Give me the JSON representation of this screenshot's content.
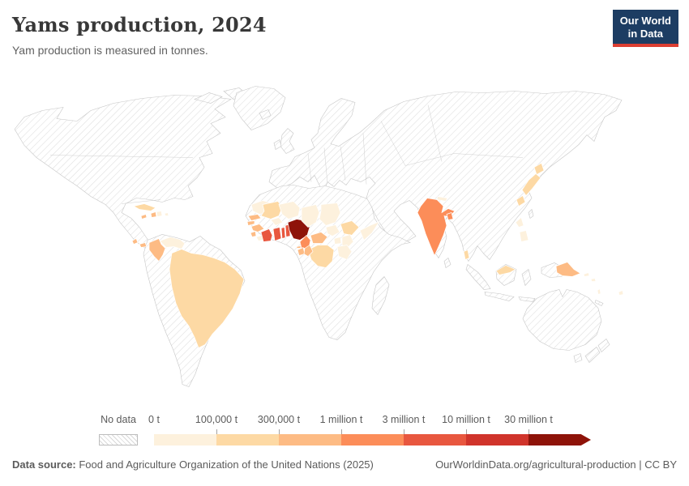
{
  "header": {
    "title": "Yams production, 2024",
    "subtitle": "Yam production is measured in tonnes."
  },
  "logo": {
    "line1": "Our World",
    "line2": "in Data"
  },
  "legend": {
    "no_data_label": "No data"
  },
  "footer": {
    "source_label": "Data source:",
    "source_text": " Food and Agriculture Organization of the United Nations (2025)",
    "right_text": "OurWorldinData.org/agricultural-production | CC BY"
  },
  "chart_data": {
    "type": "choropleth_map",
    "title": "Yams production, 2024",
    "unit": "tonnes",
    "year": "2024",
    "legend_position": "bottom",
    "no_data": {
      "label": "No data",
      "style": "diagonal-hatch"
    },
    "bins": [
      {
        "label": "0 t",
        "range": "0 - 100,000 t",
        "color": "#fdf1dd"
      },
      {
        "label": "100,000 t",
        "range": "100,000 - 300,000 t",
        "color": "#fdd9a4"
      },
      {
        "label": "300,000 t",
        "range": "300,000 - 1 million t",
        "color": "#fdbb84"
      },
      {
        "label": "1 million t",
        "range": "1 - 3 million t",
        "color": "#fc8d59"
      },
      {
        "label": "3 million t",
        "range": "3 - 10 million t",
        "color": "#e8573f"
      },
      {
        "label": "10 million t",
        "range": "10 - 30 million t",
        "color": "#d0342b"
      },
      {
        "label": "30 million t",
        "range": "30+ million t",
        "color": "#8e1309"
      }
    ],
    "country_bins": {
      "Venezuela": 0,
      "Dominican Republic": 0,
      "Puerto Rico": 0,
      "Mauritania": 0,
      "Liberia": 0,
      "Burkina Faso": 0,
      "Niger": 0,
      "Chad": 0,
      "Sudan": 0,
      "South Sudan": 0,
      "Somalia": 0,
      "Uganda": 0,
      "Kenya": 0,
      "Tanzania": 0,
      "Nepal": 0,
      "Philippines": 0,
      "Solomon Islands": 0,
      "Vanuatu": 0,
      "Fiji": 0,
      "Brazil": 1,
      "Cuba": 1,
      "Mali": 1,
      "Ethiopia": 1,
      "DR Congo": 1,
      "Japan": 1,
      "Malaysia": 1,
      "Colombia": 2,
      "Haiti": 2,
      "Jamaica": 2,
      "Costa Rica": 2,
      "Panama": 2,
      "Senegal": 2,
      "Gambia": 2,
      "Guinea": 2,
      "Sierra Leone": 2,
      "Central African Republic": 2,
      "Gabon": 2,
      "Congo": 2,
      "Equatorial Guinea": 2,
      "Papua New Guinea": 2,
      "India": 3,
      "Cameroon": 3,
      "Bangladesh": 3,
      "Cote d'Ivoire": 4,
      "Ghana": 4,
      "Togo": 4,
      "Benin": 4,
      "Nigeria": 6
    },
    "no_data_regions": [
      "United States",
      "Canada",
      "Greenland",
      "Mexico",
      "Europe",
      "Russia",
      "China",
      "Middle East",
      "Central Asia",
      "Australia",
      "Argentina",
      "Chile",
      "Peru",
      "Bolivia",
      "Indonesia",
      "New Zealand",
      "North Africa",
      "Southern Africa",
      "Madagascar"
    ]
  }
}
